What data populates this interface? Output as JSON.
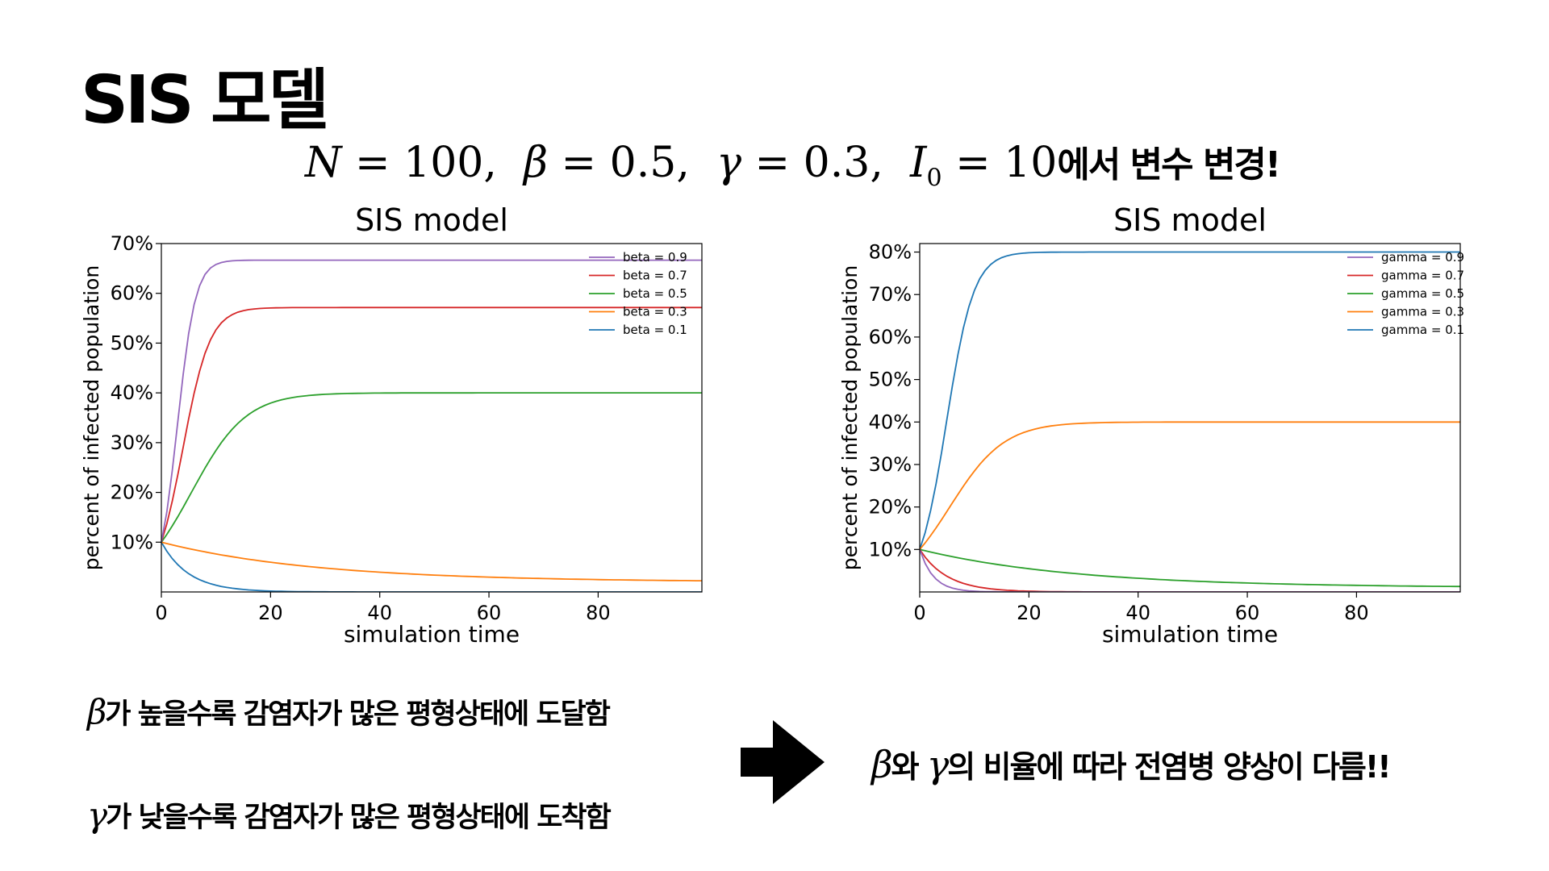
{
  "slide": {
    "title": "SIS 모델",
    "subtitle_eq_n": "N",
    "subtitle_n_val": " = 100,  ",
    "subtitle_beta": "β",
    "subtitle_beta_val": " = 0.5,  ",
    "subtitle_gamma": "γ",
    "subtitle_gamma_val": " = 0.3,  ",
    "subtitle_i": "I",
    "subtitle_i_sub": "0",
    "subtitle_i_val": " = 10",
    "subtitle_suffix": "에서 변수 변경!"
  },
  "notes": {
    "beta_symbol": "β",
    "beta_text": "가 높을수록 감염자가 많은 평형상태에 도달함",
    "gamma_symbol": "γ",
    "gamma_text": "가 낮을수록 감염자가 많은 평형상태에 도착함"
  },
  "conclusion": {
    "beta_symbol": "β",
    "middle": "와 ",
    "gamma_symbol": "γ",
    "text": "의 비율에 따라 전염병 양상이 다름!!"
  },
  "colors": {
    "purple": "#9467bd",
    "red": "#d62728",
    "green": "#2ca02c",
    "orange": "#ff7f0e",
    "blue": "#1f77b4",
    "arrow": "#000000"
  },
  "chart_data": [
    {
      "type": "line",
      "title": "SIS model",
      "xlabel": "simulation time",
      "ylabel": "percent of infected population",
      "xlim": [
        0,
        99
      ],
      "ylim": [
        0,
        70
      ],
      "xticks": [
        "0",
        "20",
        "40",
        "60",
        "80"
      ],
      "xtick_values": [
        0,
        20,
        40,
        60,
        80
      ],
      "yticks": [
        "10%",
        "20%",
        "30%",
        "40%",
        "50%",
        "60%",
        "70%"
      ],
      "ytick_values": [
        10,
        20,
        30,
        40,
        50,
        60,
        70
      ],
      "legend_position": "top-right",
      "series": [
        {
          "name": "beta = 0.9",
          "color": "#9467bd",
          "model": "sis",
          "beta": 0.9,
          "gamma": 0.3,
          "i0": 10
        },
        {
          "name": "beta = 0.7",
          "color": "#d62728",
          "model": "sis",
          "beta": 0.7,
          "gamma": 0.3,
          "i0": 10
        },
        {
          "name": "beta = 0.5",
          "color": "#2ca02c",
          "model": "sis",
          "beta": 0.5,
          "gamma": 0.3,
          "i0": 10
        },
        {
          "name": "beta = 0.3",
          "color": "#ff7f0e",
          "model": "decay",
          "equilibrium": 2.0,
          "rate": 0.035,
          "i0": 10
        },
        {
          "name": "beta = 0.1",
          "color": "#1f77b4",
          "model": "decay",
          "equilibrium": 0,
          "rate": 0.2,
          "i0": 10
        }
      ]
    },
    {
      "type": "line",
      "title": "SIS model",
      "xlabel": "simulation time",
      "ylabel": "percent of infected population",
      "xlim": [
        0,
        99
      ],
      "ylim": [
        0,
        82
      ],
      "xticks": [
        "0",
        "20",
        "40",
        "60",
        "80"
      ],
      "xtick_values": [
        0,
        20,
        40,
        60,
        80
      ],
      "yticks": [
        "10%",
        "20%",
        "30%",
        "40%",
        "50%",
        "60%",
        "70%",
        "80%"
      ],
      "ytick_values": [
        10,
        20,
        30,
        40,
        50,
        60,
        70,
        80
      ],
      "legend_position": "top-right",
      "series": [
        {
          "name": "gamma = 0.9",
          "color": "#9467bd",
          "model": "decay",
          "equilibrium": 0,
          "rate": 0.4,
          "i0": 10
        },
        {
          "name": "gamma = 0.7",
          "color": "#d62728",
          "model": "decay",
          "equilibrium": 0,
          "rate": 0.2,
          "i0": 10
        },
        {
          "name": "gamma = 0.5",
          "color": "#2ca02c",
          "model": "decay",
          "equilibrium": 1.0,
          "rate": 0.035,
          "i0": 10
        },
        {
          "name": "gamma = 0.3",
          "color": "#ff7f0e",
          "model": "sis",
          "beta": 0.5,
          "gamma": 0.3,
          "i0": 10
        },
        {
          "name": "gamma = 0.1",
          "color": "#1f77b4",
          "model": "sis",
          "beta": 0.5,
          "gamma": 0.1,
          "i0": 10
        }
      ]
    }
  ]
}
